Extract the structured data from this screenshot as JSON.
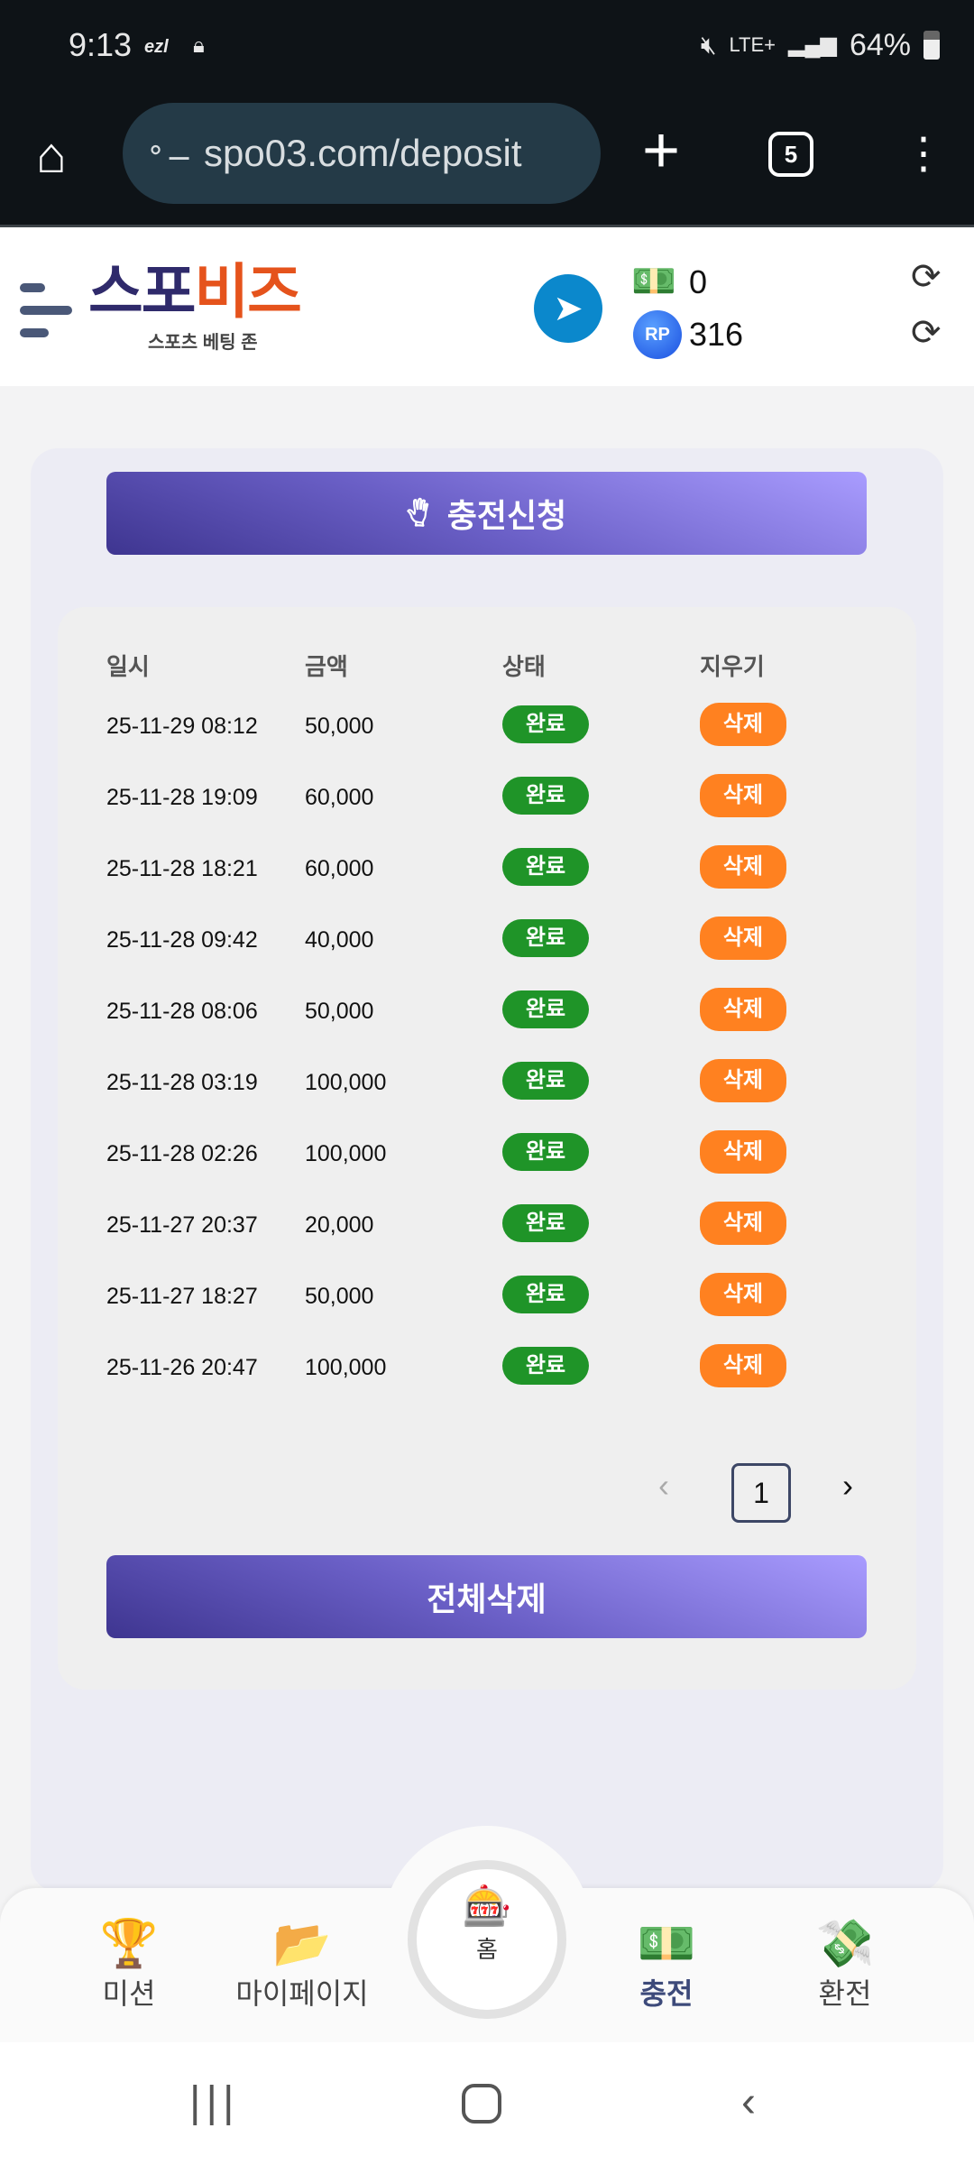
{
  "status_bar": {
    "time": "9:13",
    "carrier": "ezl",
    "network": "LTE+",
    "battery": "64%"
  },
  "browser": {
    "url": "spo03.com/deposit",
    "tab_count": "5"
  },
  "header": {
    "logo_main_1": "스포",
    "logo_main_2": "비즈",
    "logo_sub": "스포츠 베팅 존",
    "cash_balance": "0",
    "rp_balance": "316",
    "rp_label": "RP"
  },
  "main": {
    "request_button": "충전신청",
    "columns": [
      "일시",
      "금액",
      "상태",
      "지우기"
    ],
    "rows": [
      {
        "datetime": "25-11-29 08:12",
        "amount": "50,000",
        "status": "완료",
        "action": "삭제"
      },
      {
        "datetime": "25-11-28 19:09",
        "amount": "60,000",
        "status": "완료",
        "action": "삭제"
      },
      {
        "datetime": "25-11-28 18:21",
        "amount": "60,000",
        "status": "완료",
        "action": "삭제"
      },
      {
        "datetime": "25-11-28 09:42",
        "amount": "40,000",
        "status": "완료",
        "action": "삭제"
      },
      {
        "datetime": "25-11-28 08:06",
        "amount": "50,000",
        "status": "완료",
        "action": "삭제"
      },
      {
        "datetime": "25-11-28 03:19",
        "amount": "100,000",
        "status": "완료",
        "action": "삭제"
      },
      {
        "datetime": "25-11-28 02:26",
        "amount": "100,000",
        "status": "완료",
        "action": "삭제"
      },
      {
        "datetime": "25-11-27 20:37",
        "amount": "20,000",
        "status": "완료",
        "action": "삭제"
      },
      {
        "datetime": "25-11-27 18:27",
        "amount": "50,000",
        "status": "완료",
        "action": "삭제"
      },
      {
        "datetime": "25-11-26 20:47",
        "amount": "100,000",
        "status": "완료",
        "action": "삭제"
      }
    ],
    "pagination": {
      "current": "1",
      "prev": "‹",
      "next": "›"
    },
    "delete_all_button": "전체삭제"
  },
  "bottom_nav": [
    {
      "label": "미션",
      "icon": "trophy-icon"
    },
    {
      "label": "마이페이지",
      "icon": "folder-icon"
    },
    {
      "label": "홈",
      "icon": "home-logo-icon"
    },
    {
      "label": "충전",
      "icon": "deposit-icon"
    },
    {
      "label": "환전",
      "icon": "withdraw-icon"
    }
  ],
  "colors": {
    "status_done": "#1f9428",
    "delete": "#ff8120",
    "accent": "#6a5fc6"
  }
}
